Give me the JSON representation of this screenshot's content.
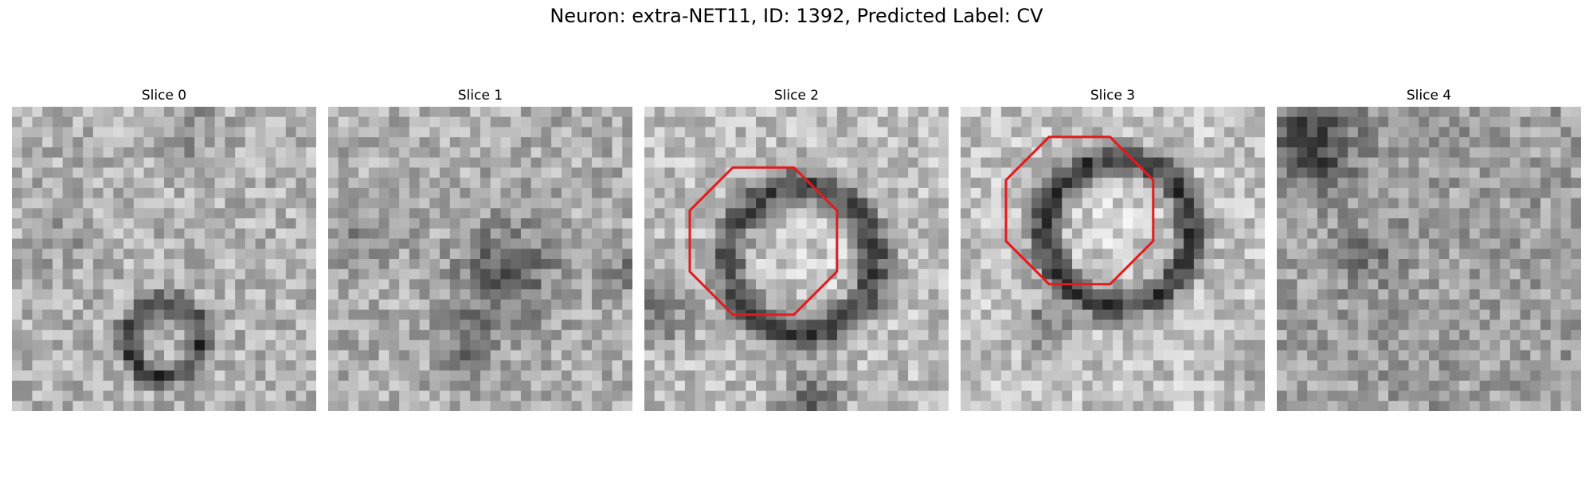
{
  "figure": {
    "title": "Neuron: extra-NET11, ID: 1392, Predicted Label: CV"
  },
  "slices": [
    {
      "label": "Slice 0",
      "has_outline": false,
      "outline_color": ""
    },
    {
      "label": "Slice 1",
      "has_outline": false,
      "outline_color": ""
    },
    {
      "label": "Slice 2",
      "has_outline": true,
      "outline_color": "#e41a1c"
    },
    {
      "label": "Slice 3",
      "has_outline": true,
      "outline_color": "#e41a1c"
    },
    {
      "label": "Slice 4",
      "has_outline": false,
      "outline_color": ""
    }
  ],
  "colormap": "gray"
}
